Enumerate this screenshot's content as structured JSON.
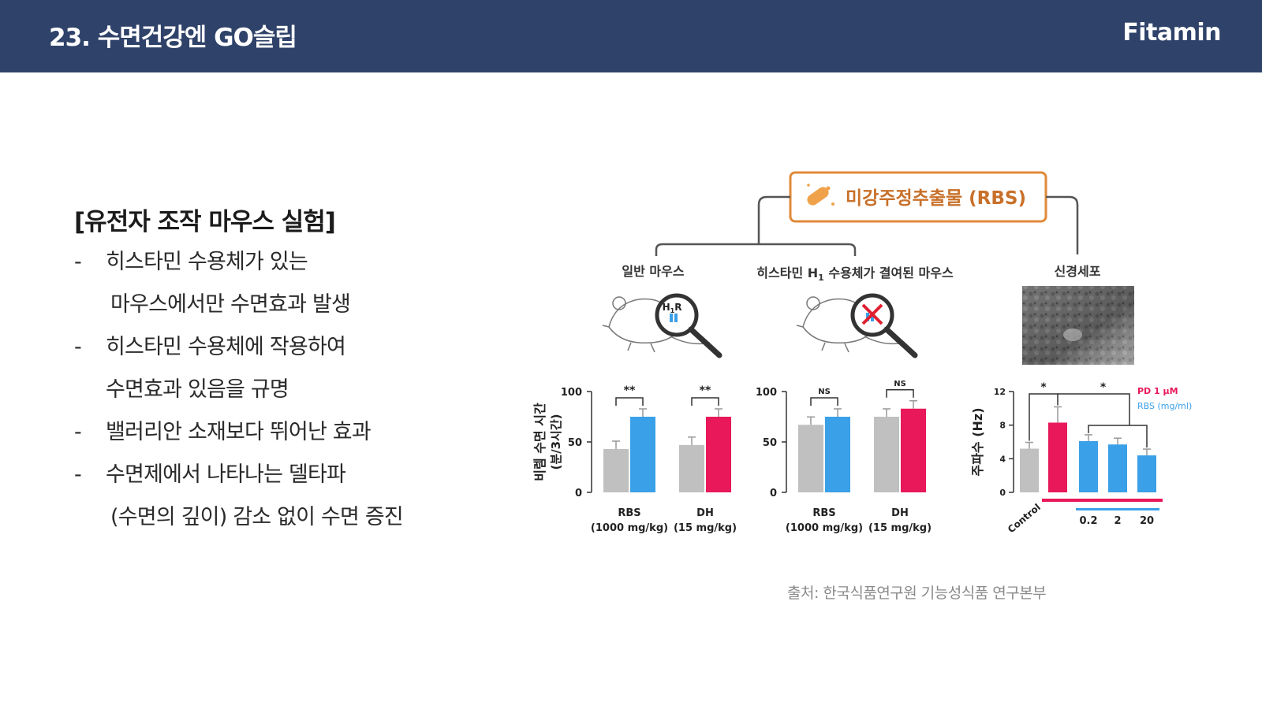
{
  "header": {
    "title": "23. 수면건강엔 GO슬립",
    "brand": "Fitamin"
  },
  "section": {
    "heading": "[유전자 조작 마우스 실험]",
    "lines": [
      {
        "dash": "-",
        "text": "히스타민 수용체가 있는"
      },
      {
        "dash": "",
        "text": "마우스에서만 수면효과 발생"
      },
      {
        "dash": "-",
        "text": "히스타민 수용체에 작용하여"
      },
      {
        "dash": "",
        "text": "수면효과 있음을 규명"
      },
      {
        "dash": "-",
        "text": "밸러리안 소재보다 뛰어난 효과"
      },
      {
        "dash": "-",
        "text": "수면제에서 나타나는 델타파"
      },
      {
        "dash": "",
        "text": "(수면의 깊이) 감소 없이 수면 증진"
      }
    ]
  },
  "figure": {
    "top_box": "미강주정추출물 (RBS)",
    "group_normal": "일반 마우스",
    "group_knockout_a": "히스타민 H",
    "group_knockout_sub": "1",
    "group_knockout_b": " 수용체가 결여된 마우스",
    "group_neuron": "신경세포",
    "receptor_label": "H",
    "receptor_sub": "1",
    "receptor_label_b": "R",
    "colors": {
      "control": "#c0c0c0",
      "rbs": "#3aa0e8",
      "dh": "#e8185a",
      "box_border": "#e08a3a"
    }
  },
  "chart_data": [
    {
      "type": "bar",
      "title": "",
      "ylabel": "비렘 수면 시간 (분/3시간)",
      "ylim": [
        0,
        100
      ],
      "yticks": [
        "0",
        "50",
        "100"
      ],
      "groups": [
        {
          "label": "RBS",
          "sublabel": "(1000 mg/kg)",
          "control": 43,
          "treated": 75,
          "treated_color": "rbs",
          "sig": "**"
        },
        {
          "label": "DH",
          "sublabel": "(15 mg/kg)",
          "control": 47,
          "treated": 75,
          "treated_color": "dh",
          "sig": "**"
        }
      ]
    },
    {
      "type": "bar",
      "title": "",
      "ylim": [
        0,
        100
      ],
      "yticks": [
        "0",
        "50",
        "100"
      ],
      "groups": [
        {
          "label": "RBS",
          "sublabel": "(1000 mg/kg)",
          "control": 67,
          "treated": 75,
          "treated_color": "rbs",
          "sig": "NS"
        },
        {
          "label": "DH",
          "sublabel": "(15 mg/kg)",
          "control": 75,
          "treated": 83,
          "treated_color": "dh",
          "sig": "NS"
        }
      ]
    },
    {
      "type": "bar",
      "title": "",
      "ylabel": "주파수 (Hz)",
      "ylim": [
        0,
        12
      ],
      "yticks": [
        "0",
        "4",
        "8",
        "12"
      ],
      "categories": [
        "Control",
        "PD 1 μM",
        "0.2",
        "2",
        "20"
      ],
      "values": [
        5.2,
        8.3,
        6.1,
        5.7,
        4.4
      ],
      "bar_colors": [
        "control",
        "dh",
        "rbs",
        "rbs",
        "rbs"
      ],
      "legend": [
        "PD 1 μM",
        "RBS (mg/ml)"
      ],
      "sig": [
        "*",
        "*"
      ]
    }
  ],
  "caption": "출처: 한국식품연구원 기능성식품 연구본부"
}
